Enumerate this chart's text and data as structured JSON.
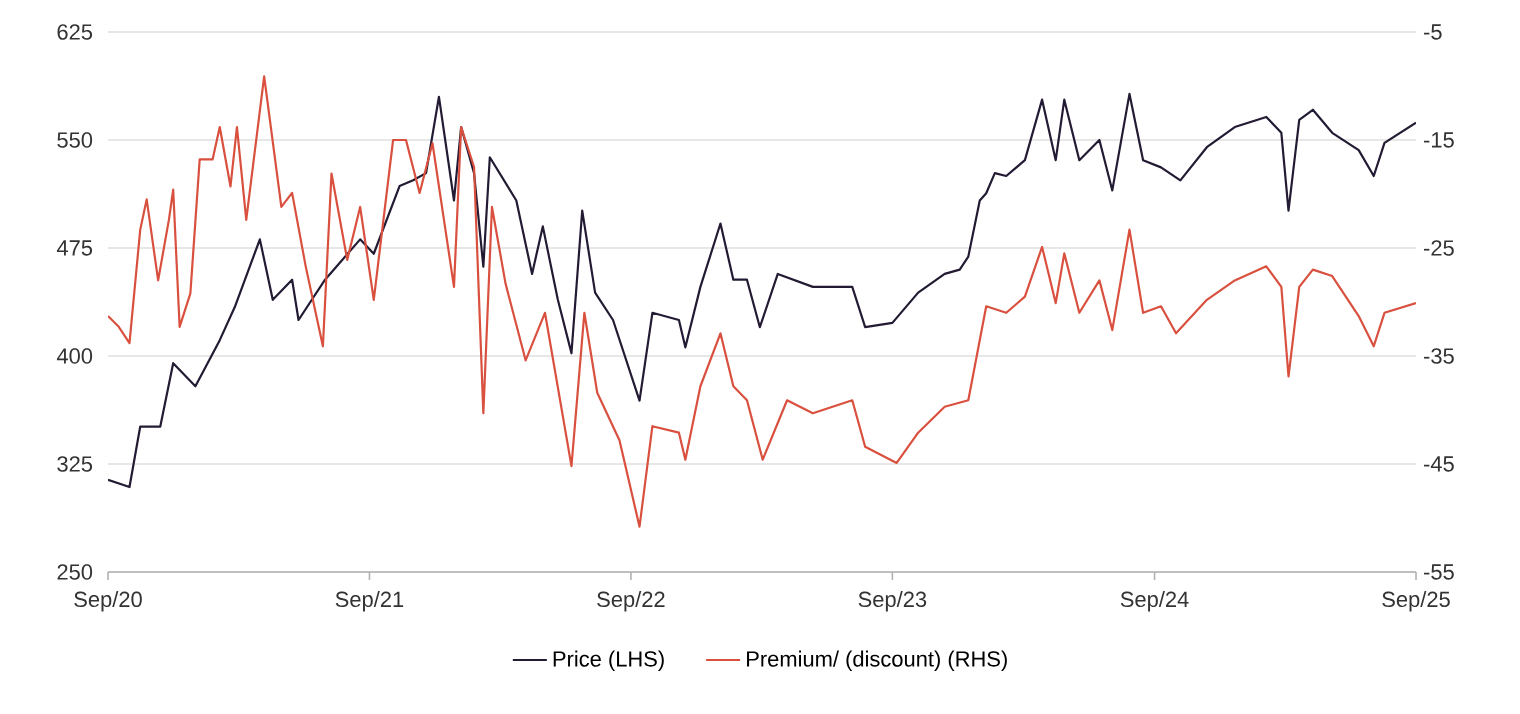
{
  "chart_data": {
    "type": "line",
    "xlim": [
      "2020-09-01",
      "2025-09-01"
    ],
    "xticks": [
      {
        "value": "2020-09-01",
        "label": "Sep/20"
      },
      {
        "value": "2021-09-01",
        "label": "Sep/21"
      },
      {
        "value": "2022-09-01",
        "label": "Sep/22"
      },
      {
        "value": "2023-09-01",
        "label": "Sep/23"
      },
      {
        "value": "2024-09-01",
        "label": "Sep/24"
      },
      {
        "value": "2025-09-01",
        "label": "Sep/25"
      }
    ],
    "ylim": [
      250,
      625
    ],
    "yticks": [
      250,
      325,
      400,
      475,
      550,
      625
    ],
    "y2lim": [
      -55,
      -5
    ],
    "y2ticks": [
      -55,
      -45,
      -35,
      -25,
      -15,
      -5
    ],
    "grid": "y",
    "legend": "bottom",
    "series": [
      {
        "name": "Price (LHS)",
        "color": "#231a33",
        "x": [
          "2020-09-01",
          "2020-10-01",
          "2020-10-16",
          "2020-11-13",
          "2020-12-01",
          "2021-01-01",
          "2021-02-04",
          "2021-02-25",
          "2021-04-01",
          "2021-04-19",
          "2021-05-16",
          "2021-05-25",
          "2021-07-01",
          "2021-08-19",
          "2021-09-07",
          "2021-10-13",
          "2021-11-01",
          "2021-11-19",
          "2021-12-07",
          "2021-12-28",
          "2022-01-07",
          "2022-01-25",
          "2022-02-07",
          "2022-02-16",
          "2022-03-25",
          "2022-04-16",
          "2022-05-01",
          "2022-05-22",
          "2022-06-10",
          "2022-06-25",
          "2022-07-13",
          "2022-08-07",
          "2022-09-13",
          "2022-10-01",
          "2022-11-07",
          "2022-11-16",
          "2022-12-07",
          "2023-01-04",
          "2023-01-22",
          "2023-02-10",
          "2023-02-28",
          "2023-03-25",
          "2023-05-13",
          "2023-07-07",
          "2023-07-25",
          "2023-09-01",
          "2023-10-07",
          "2023-11-13",
          "2023-12-04",
          "2023-12-16",
          "2024-01-01",
          "2024-01-10",
          "2024-01-22",
          "2024-02-07",
          "2024-03-04",
          "2024-03-28",
          "2024-04-16",
          "2024-04-28",
          "2024-05-19",
          "2024-06-16",
          "2024-07-04",
          "2024-07-28",
          "2024-08-16",
          "2024-09-10",
          "2024-10-07",
          "2024-11-13",
          "2024-12-22",
          "2025-02-04",
          "2025-02-25",
          "2025-03-07",
          "2025-03-22",
          "2025-04-10",
          "2025-05-07",
          "2025-06-13",
          "2025-07-04",
          "2025-07-19",
          "2025-09-01"
        ],
        "values": [
          314,
          309,
          351,
          351,
          395,
          379,
          411,
          434,
          481,
          439,
          453,
          425,
          453,
          481,
          471,
          518,
          522,
          527,
          580,
          508,
          559,
          527,
          462,
          538,
          508,
          457,
          490,
          439,
          402,
          501,
          444,
          425,
          369,
          430,
          425,
          406,
          448,
          492,
          453,
          453,
          420,
          457,
          448,
          448,
          420,
          423,
          444,
          457,
          460,
          469,
          508,
          513,
          527,
          525,
          536,
          578,
          536,
          578,
          536,
          550,
          515,
          582,
          536,
          531,
          522,
          545,
          559,
          566,
          555,
          501,
          564,
          571,
          555,
          543,
          525,
          548,
          562
        ]
      },
      {
        "name": "Premium/ (discount) (RHS)",
        "color": "#d9503f",
        "axis": "y2",
        "x": [
          "2020-09-01",
          "2020-09-16",
          "2020-10-01",
          "2020-10-16",
          "2020-10-25",
          "2020-11-10",
          "2020-11-25",
          "2020-12-01",
          "2020-12-10",
          "2020-12-25",
          "2021-01-07",
          "2021-01-25",
          "2021-02-04",
          "2021-02-19",
          "2021-02-28",
          "2021-03-13",
          "2021-04-07",
          "2021-05-01",
          "2021-05-16",
          "2021-06-04",
          "2021-06-28",
          "2021-07-10",
          "2021-08-01",
          "2021-08-19",
          "2021-09-07",
          "2021-10-04",
          "2021-10-22",
          "2021-11-10",
          "2021-11-28",
          "2021-12-28",
          "2022-01-07",
          "2022-01-25",
          "2022-02-07",
          "2022-02-19",
          "2022-03-10",
          "2022-04-07",
          "2022-05-04",
          "2022-06-10",
          "2022-06-28",
          "2022-07-16",
          "2022-08-16",
          "2022-09-13",
          "2022-10-01",
          "2022-11-07",
          "2022-11-16",
          "2022-12-07",
          "2023-01-04",
          "2023-01-22",
          "2023-02-10",
          "2023-03-04",
          "2023-04-07",
          "2023-05-13",
          "2023-07-07",
          "2023-07-25",
          "2023-09-07",
          "2023-10-07",
          "2023-11-13",
          "2023-12-16",
          "2024-01-10",
          "2024-02-07",
          "2024-03-04",
          "2024-03-28",
          "2024-04-16",
          "2024-04-28",
          "2024-05-19",
          "2024-06-16",
          "2024-07-04",
          "2024-07-28",
          "2024-08-16",
          "2024-09-10",
          "2024-10-01",
          "2024-11-13",
          "2024-12-22",
          "2025-02-04",
          "2025-02-25",
          "2025-03-07",
          "2025-03-22",
          "2025-04-10",
          "2025-05-07",
          "2025-06-13",
          "2025-07-04",
          "2025-07-19",
          "2025-09-01"
        ],
        "values": [
          -31.3,
          -32.3,
          -33.8,
          -23.3,
          -20.5,
          -28,
          -22.4,
          -19.6,
          -32.3,
          -29.2,
          -16.8,
          -16.8,
          -13.8,
          -19.3,
          -13.8,
          -22.4,
          -9.1,
          -21.2,
          -19.9,
          -26.7,
          -34.1,
          -18.1,
          -26.1,
          -21.2,
          -29.8,
          -15,
          -15,
          -19.9,
          -15.3,
          -28.6,
          -13.8,
          -17.5,
          -40.3,
          -21.2,
          -28.3,
          -35.4,
          -31,
          -45.2,
          -31,
          -38.4,
          -42.8,
          -50.8,
          -41.5,
          -42.1,
          -44.6,
          -37.8,
          -32.9,
          -37.8,
          -39.1,
          -44.6,
          -39.1,
          -40.3,
          -39.1,
          -43.4,
          -44.9,
          -42.1,
          -39.7,
          -39.1,
          -30.4,
          -31,
          -29.5,
          -24.9,
          -30.1,
          -25.5,
          -31,
          -28,
          -32.6,
          -23.3,
          -31,
          -30.4,
          -32.9,
          -29.8,
          -28,
          -26.7,
          -28.6,
          -36.9,
          -28.6,
          -27,
          -27.6,
          -31.3,
          -34.1,
          -31,
          -30.1
        ]
      }
    ]
  }
}
